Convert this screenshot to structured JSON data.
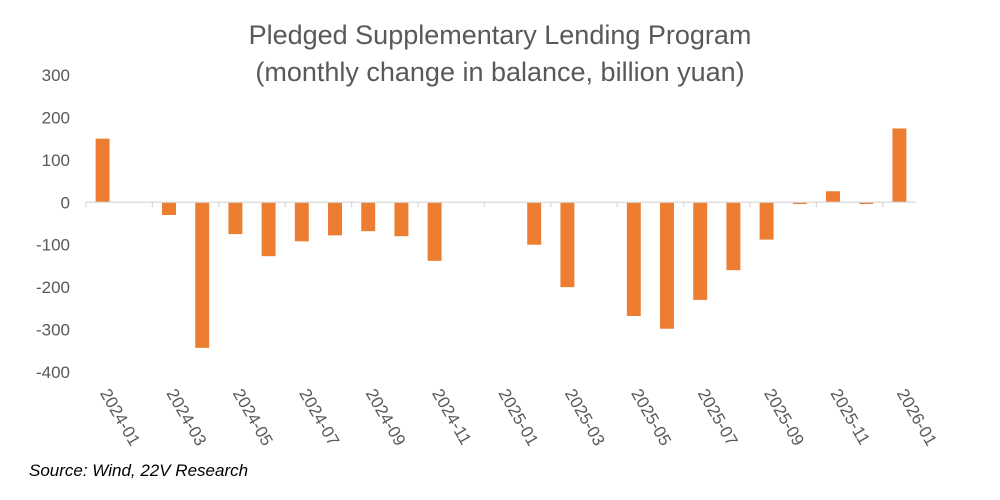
{
  "chart_data": {
    "type": "bar",
    "title": "Pledged Supplementary Lending Program",
    "subtitle": "(monthly change in balance, billion yuan)",
    "xlabel": "",
    "ylabel": "",
    "ylim": [
      -400,
      300
    ],
    "yticks": [
      300,
      200,
      100,
      0,
      -100,
      -200,
      -300,
      -400
    ],
    "categories": [
      "2024-01",
      "2024-02",
      "2024-03",
      "2024-04",
      "2024-05",
      "2024-06",
      "2024-07",
      "2024-08",
      "2024-09",
      "2024-10",
      "2024-11",
      "2024-12",
      "2025-01",
      "2025-02",
      "2025-03",
      "2025-04",
      "2025-05",
      "2025-06",
      "2025-07",
      "2025-08",
      "2025-09",
      "2025-10",
      "2025-11",
      "2025-12",
      "2026-01"
    ],
    "xtick_labels": [
      "2024-01",
      "2024-03",
      "2024-05",
      "2024-07",
      "2024-09",
      "2024-11",
      "2025-01",
      "2025-03",
      "2025-05",
      "2025-07",
      "2025-09",
      "2025-11",
      "2026-01"
    ],
    "values": [
      150,
      0,
      -30,
      -343,
      -75,
      -127,
      -92,
      -78,
      -68,
      -80,
      -138,
      0,
      0,
      -100,
      -200,
      0,
      -268,
      -298,
      -230,
      -160,
      -88,
      -4,
      26,
      -4,
      174
    ],
    "grid": false,
    "bar_color": "#ED7D31"
  },
  "source": "Source: Wind, 22V Research"
}
